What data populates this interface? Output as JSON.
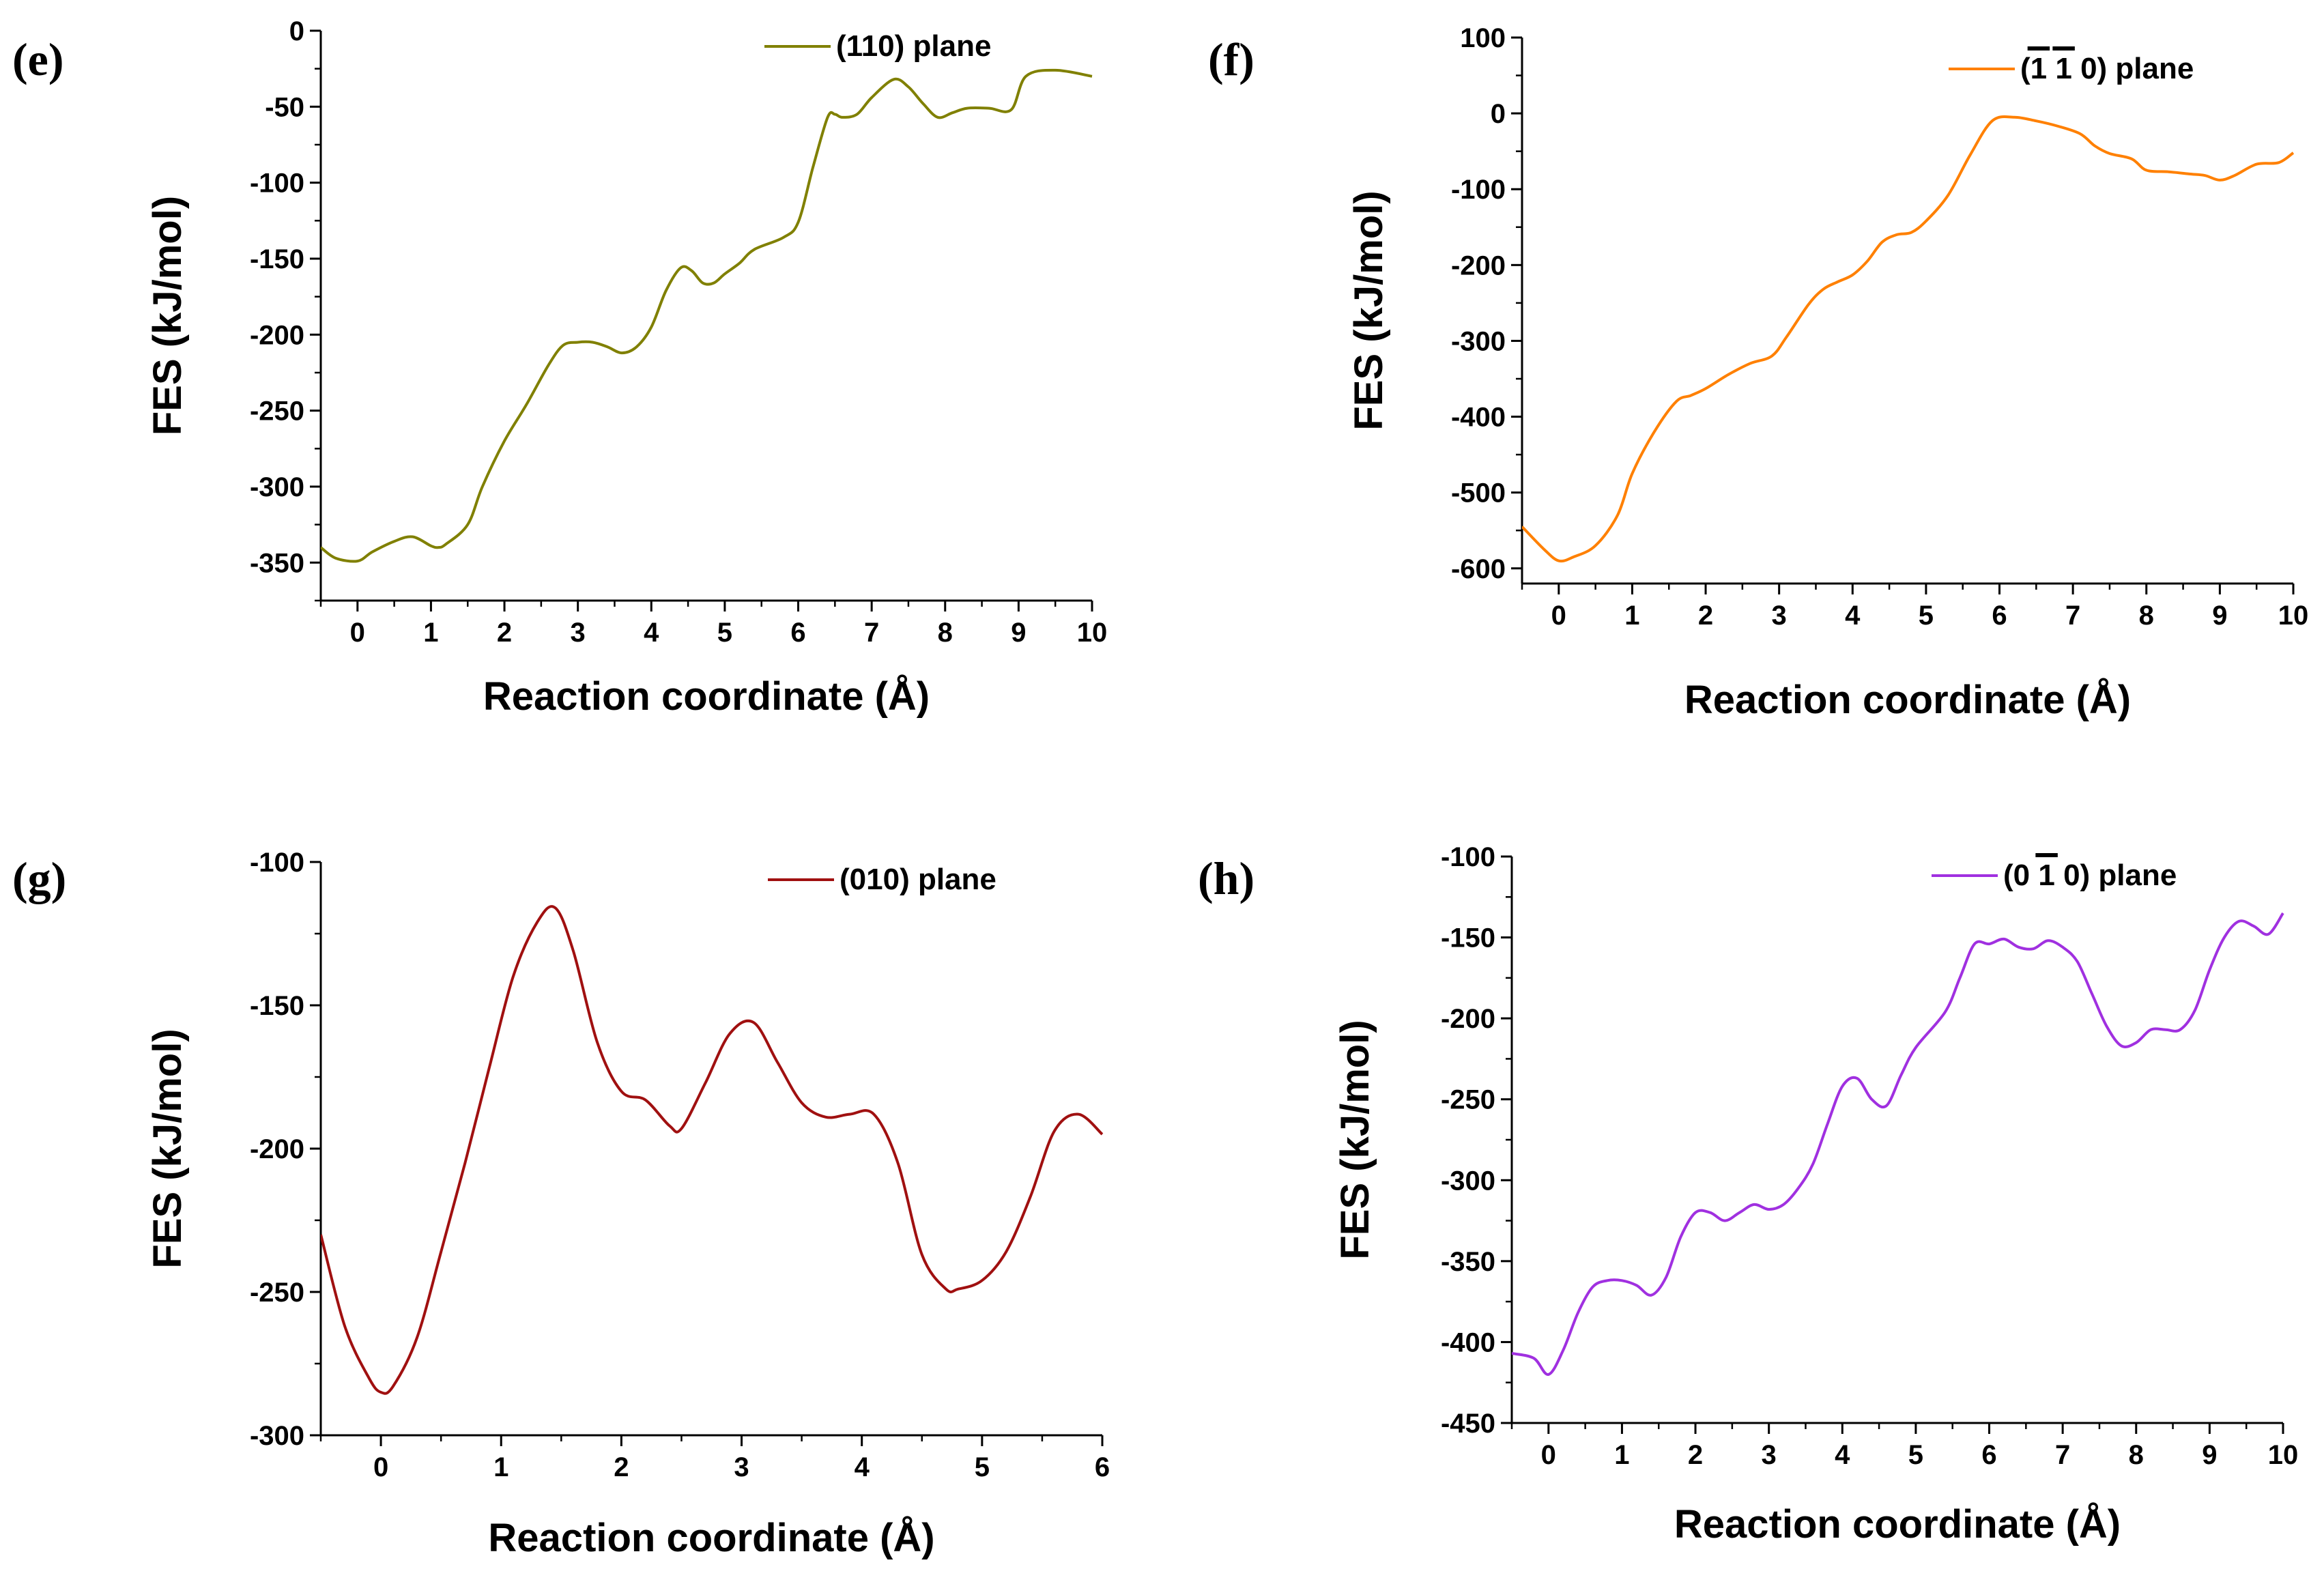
{
  "chart_data": [
    {
      "panel": "(e)",
      "type": "line",
      "legend": "(110) plane",
      "legend_parts": [
        "(110) plane"
      ],
      "overbar_index": [],
      "color": "#808000",
      "xlabel": "Reaction coordinate (Å)",
      "ylabel": "FES (kJ/mol)",
      "xlim": [
        -0.5,
        10
      ],
      "ylim": [
        -375,
        0
      ],
      "xticks": [
        0,
        1,
        2,
        3,
        4,
        5,
        6,
        7,
        8,
        9,
        10
      ],
      "yticks": [
        0,
        -50,
        -100,
        -150,
        -200,
        -250,
        -300,
        -350
      ],
      "x": [
        -0.5,
        -0.3,
        0,
        0.2,
        0.5,
        0.75,
        1,
        1.1,
        1.2,
        1.5,
        1.7,
        2,
        2.3,
        2.6,
        2.8,
        3,
        3.2,
        3.4,
        3.6,
        3.8,
        4,
        4.2,
        4.4,
        4.55,
        4.7,
        4.85,
        5,
        5.2,
        5.4,
        5.8,
        6,
        6.2,
        6.4,
        6.5,
        6.6,
        6.8,
        7,
        7.3,
        7.5,
        7.7,
        7.9,
        8.1,
        8.3,
        8.6,
        8.9,
        9.1,
        9.5,
        10
      ],
      "y": [
        -340,
        -347,
        -349,
        -343,
        -336,
        -333,
        -339,
        -340,
        -338,
        -325,
        -300,
        -270,
        -246,
        -220,
        -207,
        -205,
        -205,
        -208,
        -212,
        -208,
        -195,
        -171,
        -156,
        -158,
        -166,
        -166,
        -160,
        -153,
        -144,
        -136,
        -126,
        -90,
        -57,
        -55,
        -57,
        -55,
        -44,
        -32,
        -37,
        -48,
        -57,
        -54,
        -51,
        -51,
        -52,
        -30,
        -26,
        -30
      ]
    },
    {
      "panel": "(f)",
      "type": "line",
      "legend": "(1 1 0) plane",
      "legend_parts": [
        "(",
        "1",
        " ",
        "1",
        " 0) plane"
      ],
      "overbar_index": [
        1,
        3
      ],
      "color": "#ff8000",
      "xlabel": "Reaction coordinate (Å)",
      "ylabel": "FES (kJ/mol)",
      "xlim": [
        -0.5,
        10
      ],
      "ylim": [
        -620,
        100
      ],
      "xticks": [
        0,
        1,
        2,
        3,
        4,
        5,
        6,
        7,
        8,
        9,
        10
      ],
      "yticks": [
        100,
        0,
        -100,
        -200,
        -300,
        -400,
        -500,
        -600
      ],
      "x": [
        -0.5,
        -0.2,
        0,
        0.2,
        0.5,
        0.8,
        1,
        1.3,
        1.6,
        1.8,
        2,
        2.3,
        2.6,
        2.9,
        3.1,
        3.4,
        3.6,
        3.8,
        4,
        4.2,
        4.4,
        4.6,
        4.8,
        5,
        5.3,
        5.6,
        5.9,
        6.2,
        6.5,
        6.8,
        7.1,
        7.3,
        7.5,
        7.8,
        8,
        8.3,
        8.6,
        8.8,
        9,
        9.2,
        9.5,
        9.8,
        10
      ],
      "y": [
        -545,
        -575,
        -590,
        -585,
        -570,
        -530,
        -475,
        -420,
        -380,
        -372,
        -363,
        -345,
        -330,
        -320,
        -295,
        -252,
        -232,
        -222,
        -213,
        -195,
        -170,
        -160,
        -157,
        -142,
        -108,
        -55,
        -10,
        -5,
        -10,
        -17,
        -27,
        -43,
        -53,
        -60,
        -75,
        -77,
        -80,
        -82,
        -88,
        -82,
        -67,
        -65,
        -52
      ]
    },
    {
      "panel": "(g)",
      "type": "line",
      "legend": "(010) plane",
      "legend_parts": [
        "(010) plane"
      ],
      "overbar_index": [],
      "color": "#a01010",
      "xlabel": "Reaction coordinate (Å)",
      "ylabel": "FES (kJ/mol)",
      "xlim": [
        -0.5,
        6
      ],
      "ylim": [
        -300,
        -100
      ],
      "xticks": [
        0,
        1,
        2,
        3,
        4,
        5,
        6
      ],
      "yticks": [
        -100,
        -150,
        -200,
        -250,
        -300
      ],
      "x": [
        -0.5,
        -0.3,
        -0.1,
        0,
        0.1,
        0.3,
        0.5,
        0.7,
        0.9,
        1.1,
        1.3,
        1.45,
        1.6,
        1.8,
        2,
        2.2,
        2.4,
        2.5,
        2.7,
        2.9,
        3.1,
        3.3,
        3.5,
        3.7,
        3.9,
        4.1,
        4.3,
        4.5,
        4.7,
        4.8,
        5,
        5.2,
        5.4,
        5.6,
        5.8,
        6
      ],
      "y": [
        -230,
        -262,
        -280,
        -285,
        -283,
        -266,
        -236,
        -205,
        -172,
        -140,
        -121,
        -116,
        -131,
        -163,
        -180,
        -183,
        -192,
        -193,
        -177,
        -160,
        -156,
        -170,
        -184,
        -189,
        -188,
        -188,
        -205,
        -237,
        -249,
        -249,
        -246,
        -236,
        -217,
        -194,
        -188,
        -195
      ]
    },
    {
      "panel": "(h)",
      "type": "line",
      "legend": "(0 1 0) plane",
      "legend_parts": [
        "(0 ",
        "1",
        " 0) plane"
      ],
      "overbar_index": [
        1
      ],
      "color": "#a030e0",
      "xlabel": "Reaction coordinate (Å)",
      "ylabel": "FES (kJ/mol)",
      "xlim": [
        -0.5,
        10
      ],
      "ylim": [
        -450,
        -100
      ],
      "xticks": [
        0,
        1,
        2,
        3,
        4,
        5,
        6,
        7,
        8,
        9,
        10
      ],
      "yticks": [
        -100,
        -150,
        -200,
        -250,
        -300,
        -350,
        -400,
        -450
      ],
      "x": [
        -0.5,
        -0.2,
        0,
        0.2,
        0.4,
        0.6,
        0.8,
        1,
        1.2,
        1.4,
        1.6,
        1.8,
        2,
        2.2,
        2.4,
        2.6,
        2.8,
        3,
        3.2,
        3.4,
        3.6,
        3.8,
        4,
        4.2,
        4.4,
        4.6,
        4.8,
        5,
        5.4,
        5.6,
        5.8,
        6,
        6.2,
        6.4,
        6.6,
        6.8,
        7,
        7.2,
        7.4,
        7.6,
        7.8,
        8,
        8.2,
        8.4,
        8.6,
        8.8,
        9,
        9.2,
        9.4,
        9.6,
        9.8,
        10
      ],
      "y": [
        -407,
        -410,
        -420,
        -405,
        -382,
        -366,
        -362,
        -362,
        -365,
        -371,
        -360,
        -335,
        -320,
        -320,
        -325,
        -320,
        -315,
        -318,
        -315,
        -305,
        -290,
        -265,
        -242,
        -237,
        -250,
        -254,
        -235,
        -218,
        -196,
        -175,
        -154,
        -154,
        -151,
        -156,
        -157,
        -152,
        -156,
        -165,
        -185,
        -205,
        -217,
        -215,
        -207,
        -207,
        -207,
        -195,
        -170,
        -150,
        -140,
        -143,
        -148,
        -135
      ]
    }
  ]
}
